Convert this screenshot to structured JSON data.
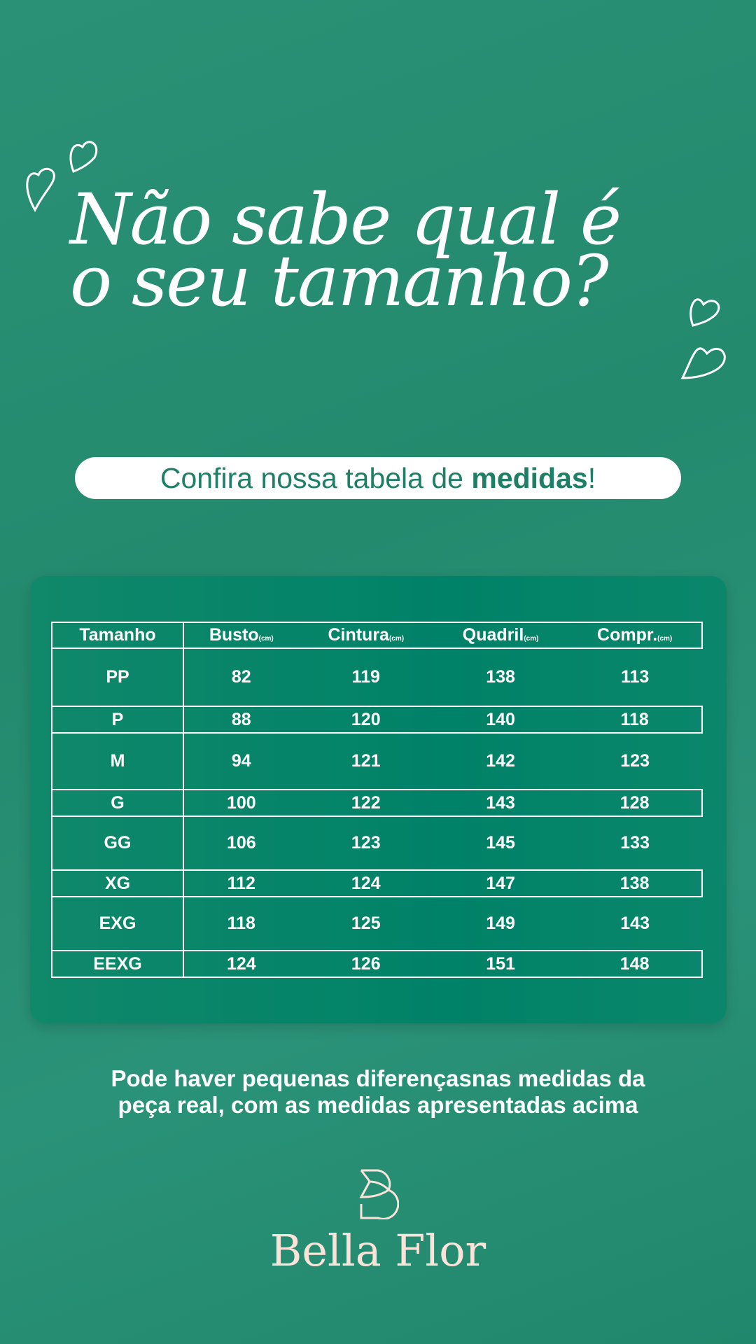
{
  "headline": {
    "line1": "Não sabe qual é",
    "line2": "o seu tamanho?"
  },
  "banner": {
    "prefix": "Confira nossa tabela de ",
    "bold": "medidas",
    "suffix": "!"
  },
  "table": {
    "headers": [
      {
        "label": "Tamanho",
        "unit": ""
      },
      {
        "label": "Busto",
        "unit": "(cm)"
      },
      {
        "label": "Cintura",
        "unit": "(cm)"
      },
      {
        "label": "Quadril",
        "unit": "(cm)"
      },
      {
        "label": "Compr.",
        "unit": "(cm)"
      }
    ],
    "rows": [
      [
        "PP",
        "82",
        "119",
        "138",
        "113"
      ],
      [
        "P",
        "88",
        "120",
        "140",
        "118"
      ],
      [
        "M",
        "94",
        "121",
        "142",
        "123"
      ],
      [
        "G",
        "100",
        "122",
        "143",
        "128"
      ],
      [
        "GG",
        "106",
        "123",
        "145",
        "133"
      ],
      [
        "XG",
        "112",
        "124",
        "147",
        "138"
      ],
      [
        "EXG",
        "118",
        "125",
        "149",
        "143"
      ],
      [
        "EEXG",
        "124",
        "126",
        "151",
        "148"
      ]
    ]
  },
  "disclaimer": {
    "line1": "Pode haver pequenas diferençasnas medidas da",
    "line2": "peça real, com as medidas apresentadas acima"
  },
  "brand": {
    "name": "Bella Flor"
  },
  "colors": {
    "background": "#248a6e",
    "card": "#008268",
    "logo": "#fbe3d9"
  }
}
